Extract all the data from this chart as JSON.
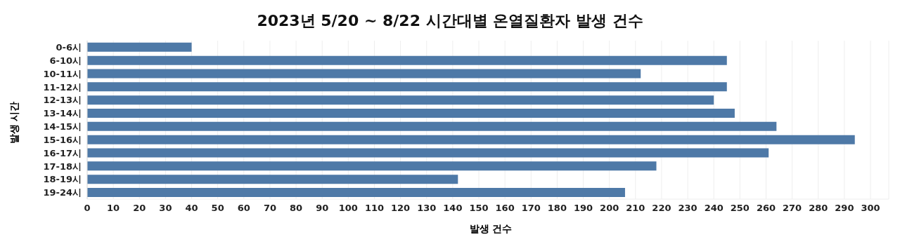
{
  "chart_data": {
    "type": "bar",
    "orientation": "horizontal",
    "title": "2023년 5/20 ~ 8/22 시간대별 온열질환자 발생 건수",
    "xlabel": "발생 건수",
    "ylabel": "발생 시간",
    "categories": [
      "0-6시",
      "6-10시",
      "10-11시",
      "11-12시",
      "12-13시",
      "13-14시",
      "14-15시",
      "15-16시",
      "16-17시",
      "17-18시",
      "18-19시",
      "19-24시"
    ],
    "values": [
      40,
      245,
      212,
      245,
      240,
      248,
      264,
      294,
      261,
      218,
      142,
      206
    ],
    "color": "#4e79a7",
    "xlim": [
      0,
      307
    ],
    "xticks": [
      0,
      10,
      20,
      30,
      40,
      50,
      60,
      70,
      80,
      90,
      100,
      110,
      120,
      130,
      140,
      150,
      160,
      170,
      180,
      190,
      200,
      210,
      220,
      230,
      240,
      250,
      260,
      270,
      280,
      290,
      300
    ],
    "grid": "x"
  }
}
